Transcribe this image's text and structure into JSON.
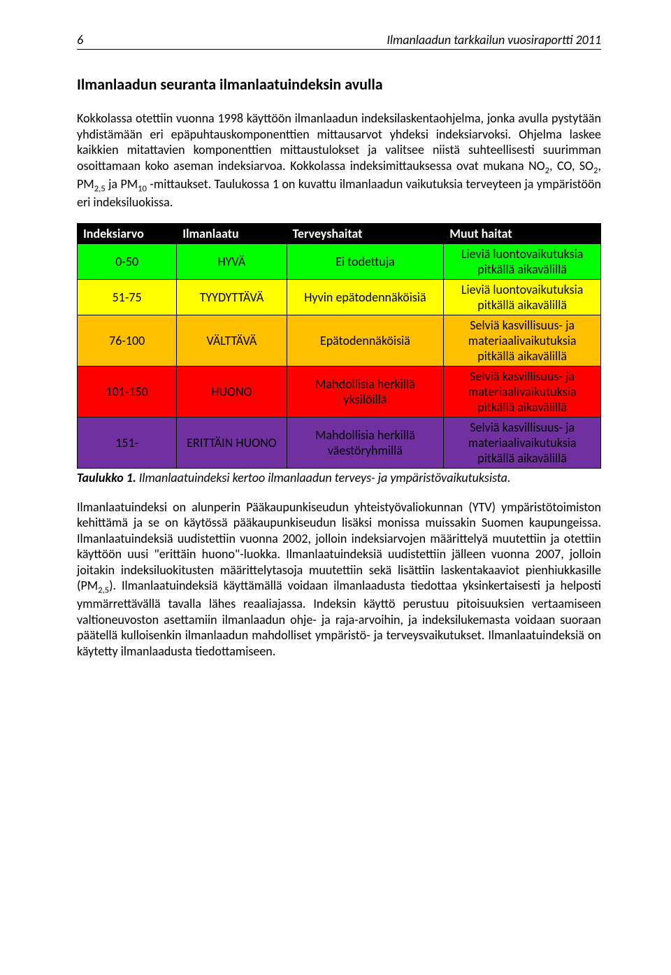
{
  "header": {
    "page_number": "6",
    "title": "Ilmanlaadun tarkkailun vuosiraportti 2011"
  },
  "section_title": "Ilmanlaadun seuranta ilmanlaatuindeksin avulla",
  "paragraph1_html": "Kokkolassa otettiin vuonna 1998 käyttöön ilmanlaadun indeksilaskentaohjelma, jonka avulla pystytään yhdistämään eri epäpuhtauskomponenttien mittausarvot yhdeksi indeksiarvoksi. Ohjelma laskee kaikkien mitattavien komponenttien mittaustulokset ja valitsee niistä suhteellisesti suurimman osoittamaan koko aseman indeksiarvoa. Kokkolassa indeksimittauksessa ovat mukana NO<sub>2</sub>, CO, SO<sub>2</sub>, PM<sub>2,5</sub> ja PM<sub>10</sub> -mittaukset. Taulukossa 1 on kuvattu ilmanlaadun vaikutuksia terveyteen ja ympäristöön eri indeksiluokissa.",
  "table": {
    "header_bg": "#000000",
    "header_fg": "#ffffff",
    "columns": [
      "Indeksiarvo",
      "Ilmanlaatu",
      "Terveyshaitat",
      "Muut haitat"
    ],
    "rows": [
      {
        "bg": "#00ff00",
        "cells": [
          "0-50",
          "HYVÄ",
          "Ei todettuja",
          "Lieviä luontovaikutuksia pitkällä aikavälillä"
        ]
      },
      {
        "bg": "#ffff00",
        "cells": [
          "51-75",
          "TYYDYTTÄVÄ",
          "Hyvin epätodennäköisiä",
          "Lieviä luontovaikutuksia pitkällä aikavälillä"
        ]
      },
      {
        "bg": "#ffc000",
        "cells": [
          "76-100",
          "VÄLTTÄVÄ",
          "Epätodennäköisiä",
          "Selviä kasvillisuus- ja materiaalivaikutuksia pitkällä aikavälillä"
        ]
      },
      {
        "bg": "#ff0000",
        "cells": [
          "101-150",
          "HUONO",
          "Mahdollisia herkillä yksilöillä",
          "Selviä kasvillisuus- ja materiaalivaikutuksia pitkällä aikavälillä"
        ]
      },
      {
        "bg": "#7030a0",
        "cells": [
          "151-",
          "ERITTÄIN HUONO",
          "Mahdollisia herkillä väestöryhmillä",
          "Selviä kasvillisuus- ja materiaalivaikutuksia pitkällä aikavälillä"
        ]
      }
    ]
  },
  "table_caption_bold": "Taulukko 1.",
  "table_caption_rest": " Ilmanlaatuindeksi kertoo ilmanlaadun terveys- ja ympäristövaikutuksista.",
  "paragraph2_html": "Ilmanlaatuindeksi on alunperin Pääkaupunkiseudun yhteistyövaliokunnan (YTV) ympäristötoimiston kehittämä ja se on käytössä pääkaupunkiseudun lisäksi monissa muissakin Suomen kaupungeissa. Ilmanlaatuindeksiä uudistettiin vuonna 2002, jolloin indeksiarvojen määrittelyä muutettiin ja otettiin käyttöön uusi \"erittäin huono\"-luokka. Ilmanlaatuindeksiä uudistettiin jälleen vuonna 2007, jolloin joitakin indeksiluokitusten määrittelytasoja muutettiin sekä lisättiin laskentakaaviot pienhiukkasille (PM<sub>2,5</sub>). Ilmanlaatuindeksiä käyttämällä voidaan ilmanlaadusta tiedottaa yksinkertaisesti ja helposti ymmärrettävällä tavalla lähes reaaliajassa. Indeksin käyttö perustuu pitoisuuksien vertaamiseen valtioneuvoston asettamiin ilmanlaadun ohje- ja raja-arvoihin, ja indeksilukemasta voidaan suoraan päätellä kulloisenkin ilmanlaadun mahdolliset ympäristö- ja terveysvaikutukset. Ilmanlaatuindeksiä on käytetty ilmanlaadusta tiedottamiseen."
}
